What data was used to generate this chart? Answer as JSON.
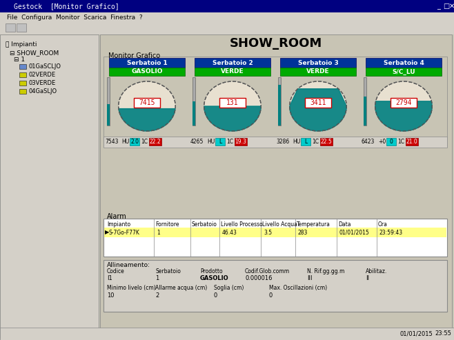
{
  "title": "SHOW_ROOM",
  "bg_color": "#c8c8b8",
  "panel_bg": "#d4d0c8",
  "main_area_bg": "#c8c4b4",
  "window_title": "Gestock  [Monitor Grafico]",
  "left_panel_bg": "#d4d0c8",
  "monitor_label": "Monitor Grafico",
  "tanks": [
    {
      "name": "Serbatoio 1",
      "product": "GASOLIO",
      "fill_level": 0.45,
      "label": "7415",
      "color": "#008080",
      "header_color": "#003399",
      "product_color": "#00aa00"
    },
    {
      "name": "Serbatoio 2",
      "product": "VERDE",
      "fill_level": 0.5,
      "label": "131",
      "color": "#008080",
      "header_color": "#003399",
      "product_color": "#00aa00"
    },
    {
      "name": "Serbatoio 3",
      "product": "VERDE",
      "fill_level": 0.85,
      "label": "3411",
      "color": "#008080",
      "header_color": "#003399",
      "product_color": "#00aa00"
    },
    {
      "name": "Serbatoio 4",
      "product": "S/C_LU",
      "fill_level": 0.6,
      "label": "2794",
      "color": "#008080",
      "header_color": "#003399",
      "product_color": "#00aa00"
    }
  ],
  "alarm_section": {
    "title": "Alarm",
    "headers": [
      "Impianto",
      "Fornitore",
      "Serbatoio",
      "Livello Processo",
      "Livello Acqua",
      "Temperatura",
      "Data",
      "Ora"
    ],
    "row": [
      "S-7Go-F77K",
      "1",
      "",
      "46.43",
      "3.5",
      "283",
      "01/01/2015",
      "23:59:43"
    ]
  },
  "config_section": {
    "title": "Allineamento:",
    "headers": [
      "Codice",
      "Serbatoio",
      "Prodotto",
      "Codif.Glob.comm",
      "N. Rif.gg.gg.m",
      "Abilitaz."
    ],
    "row1": [
      "I1",
      "1",
      "GASOLIO",
      "0.000016",
      "III",
      "II"
    ],
    "row2": [
      "Minimo livelo (cm)",
      "Allarme acqua (cm)",
      "Soglia (cm)",
      "Max. Oscillazioni (cm)"
    ],
    "row3": [
      "10",
      "2",
      "0",
      "0"
    ]
  },
  "tree_items": [
    "SHOW_ROOM",
    "1",
    "01GaSCLJO",
    "02VERDE",
    "03VERDE",
    "04GaSLJO"
  ],
  "status_bar": [
    "01/01/2015",
    "23:55"
  ]
}
